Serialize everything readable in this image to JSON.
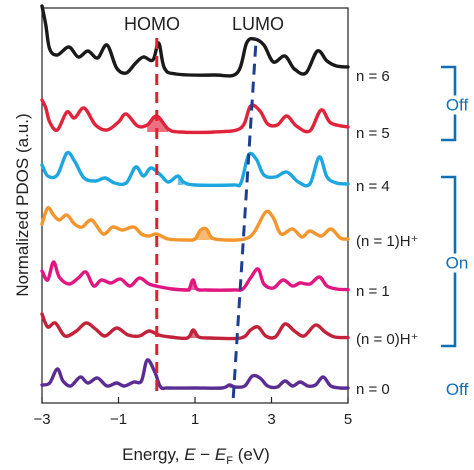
{
  "chart_data": {
    "type": "line",
    "ylabel": "Normalized PDOS (a.u.)",
    "xlabel_parts": [
      "Energy, ",
      "E",
      " − ",
      "E",
      "F",
      " (eV)"
    ],
    "xlim": [
      -3,
      5
    ],
    "xticks": [
      -3,
      -1,
      1,
      3,
      5
    ],
    "annotations": {
      "homo": "HOMO",
      "lumo": "LUMO"
    },
    "homo_x": 0.0,
    "lumo_line": [
      [
        2.0,
        0
      ],
      [
        2.6,
        6
      ]
    ],
    "series": [
      {
        "name": "n = 6",
        "color": "#1a1a1a",
        "points": [
          [
            -3,
            3.45
          ],
          [
            -2.9,
            2.5
          ],
          [
            -2.8,
            1.3
          ],
          [
            -2.6,
            1.0
          ],
          [
            -2.3,
            1.4
          ],
          [
            -2.05,
            0.9
          ],
          [
            -1.8,
            1.2
          ],
          [
            -1.55,
            0.85
          ],
          [
            -1.3,
            1.5
          ],
          [
            -1.05,
            0.35
          ],
          [
            -0.8,
            0.1
          ],
          [
            -0.55,
            0.6
          ],
          [
            -0.35,
            0.9
          ],
          [
            -0.1,
            0.75
          ],
          [
            0.05,
            1.6
          ],
          [
            0.2,
            0.35
          ],
          [
            0.5,
            0.05
          ],
          [
            1.5,
            0.0
          ],
          [
            2.1,
            0.1
          ],
          [
            2.35,
            1.6
          ],
          [
            2.55,
            1.8
          ],
          [
            2.8,
            1.5
          ],
          [
            3.05,
            0.65
          ],
          [
            3.35,
            0.95
          ],
          [
            3.6,
            0.3
          ],
          [
            3.9,
            0.1
          ],
          [
            4.2,
            1.2
          ],
          [
            4.45,
            0.7
          ],
          [
            4.7,
            0.45
          ],
          [
            5,
            0.4
          ]
        ]
      },
      {
        "name": "n = 5",
        "color": "#e0243c",
        "points": [
          [
            -3,
            1.6
          ],
          [
            -2.9,
            1.2
          ],
          [
            -2.8,
            0.5
          ],
          [
            -2.6,
            0.1
          ],
          [
            -2.35,
            1.0
          ],
          [
            -2.15,
            0.7
          ],
          [
            -1.9,
            1.2
          ],
          [
            -1.6,
            0.35
          ],
          [
            -1.3,
            0.1
          ],
          [
            -1.0,
            0.5
          ],
          [
            -0.8,
            0.9
          ],
          [
            -0.5,
            0.3
          ],
          [
            -0.25,
            0.35
          ],
          [
            0.0,
            0.8
          ],
          [
            0.3,
            0.15
          ],
          [
            0.6,
            0.0
          ],
          [
            1.5,
            0.0
          ],
          [
            2.2,
            0.2
          ],
          [
            2.45,
            1.3
          ],
          [
            2.7,
            1.05
          ],
          [
            2.9,
            0.4
          ],
          [
            3.15,
            0.35
          ],
          [
            3.4,
            0.8
          ],
          [
            3.65,
            0.3
          ],
          [
            4.0,
            0.05
          ],
          [
            4.3,
            1.1
          ],
          [
            4.55,
            0.45
          ],
          [
            5,
            0.25
          ]
        ],
        "filled": [
          -0.4,
          0.3
        ]
      },
      {
        "name": "n = 4",
        "color": "#1ea7df",
        "points": [
          [
            -3,
            1.0
          ],
          [
            -2.85,
            0.45
          ],
          [
            -2.6,
            0.5
          ],
          [
            -2.35,
            1.6
          ],
          [
            -2.15,
            1.2
          ],
          [
            -1.9,
            0.35
          ],
          [
            -1.6,
            0.2
          ],
          [
            -1.35,
            0.35
          ],
          [
            -1.1,
            0.1
          ],
          [
            -0.8,
            0.1
          ],
          [
            -0.55,
            0.9
          ],
          [
            -0.35,
            0.45
          ],
          [
            -0.15,
            0.85
          ],
          [
            0.1,
            0.5
          ],
          [
            0.3,
            0.15
          ],
          [
            0.55,
            0.45
          ],
          [
            0.7,
            0.15
          ],
          [
            1.0,
            0.0
          ],
          [
            2.0,
            0.0
          ],
          [
            2.2,
            0.1
          ],
          [
            2.4,
            1.5
          ],
          [
            2.6,
            1.3
          ],
          [
            2.8,
            0.5
          ],
          [
            3.1,
            0.4
          ],
          [
            3.4,
            0.65
          ],
          [
            3.7,
            0.15
          ],
          [
            4.0,
            0.05
          ],
          [
            4.25,
            1.4
          ],
          [
            4.45,
            0.4
          ],
          [
            4.7,
            0.1
          ],
          [
            5,
            0.05
          ]
        ],
        "filled": [
          0.35,
          0.85
        ]
      },
      {
        "name": "(n = 1)H⁺",
        "color": "#f2962d",
        "points": [
          [
            -3,
            0.8
          ],
          [
            -2.85,
            1.6
          ],
          [
            -2.7,
            1.25
          ],
          [
            -2.55,
            1.0
          ],
          [
            -2.35,
            1.25
          ],
          [
            -2.15,
            0.8
          ],
          [
            -1.95,
            0.65
          ],
          [
            -1.7,
            1.0
          ],
          [
            -1.4,
            0.3
          ],
          [
            -1.15,
            0.65
          ],
          [
            -0.9,
            0.5
          ],
          [
            -0.6,
            0.65
          ],
          [
            -0.4,
            0.3
          ],
          [
            -0.2,
            0.2
          ],
          [
            0.0,
            0.3
          ],
          [
            0.3,
            0.05
          ],
          [
            0.8,
            0.0
          ],
          [
            1.0,
            0.05
          ],
          [
            1.15,
            0.5
          ],
          [
            1.3,
            0.55
          ],
          [
            1.45,
            0.1
          ],
          [
            1.8,
            0.0
          ],
          [
            2.3,
            0.05
          ],
          [
            2.55,
            0.4
          ],
          [
            2.85,
            1.4
          ],
          [
            3.05,
            1.1
          ],
          [
            3.25,
            0.3
          ],
          [
            3.55,
            0.55
          ],
          [
            3.8,
            0.15
          ],
          [
            4.0,
            0.45
          ],
          [
            4.3,
            0.2
          ],
          [
            4.55,
            0.55
          ],
          [
            4.8,
            0.1
          ],
          [
            5,
            0.05
          ]
        ],
        "filled": [
          0.9,
          1.5
        ]
      },
      {
        "name": "n = 1",
        "color": "#e01781",
        "points": [
          [
            -3,
            0.95
          ],
          [
            -2.85,
            0.5
          ],
          [
            -2.7,
            1.4
          ],
          [
            -2.55,
            0.65
          ],
          [
            -2.3,
            0.3
          ],
          [
            -2.05,
            0.6
          ],
          [
            -1.85,
            0.9
          ],
          [
            -1.65,
            0.2
          ],
          [
            -1.45,
            0.5
          ],
          [
            -1.2,
            0.35
          ],
          [
            -0.95,
            0.55
          ],
          [
            -0.7,
            0.2
          ],
          [
            -0.45,
            0.6
          ],
          [
            -0.2,
            0.3
          ],
          [
            0.1,
            0.15
          ],
          [
            0.4,
            0.05
          ],
          [
            0.8,
            0.0
          ],
          [
            0.85,
            0.05
          ],
          [
            0.95,
            0.5
          ],
          [
            1.05,
            0.05
          ],
          [
            1.3,
            0.0
          ],
          [
            2.0,
            0.0
          ],
          [
            2.25,
            0.05
          ],
          [
            2.45,
            0.6
          ],
          [
            2.65,
            1.05
          ],
          [
            2.8,
            0.3
          ],
          [
            3.05,
            0.1
          ],
          [
            3.3,
            0.5
          ],
          [
            3.55,
            0.2
          ],
          [
            3.75,
            0.35
          ],
          [
            4.0,
            0.3
          ],
          [
            4.25,
            0.65
          ],
          [
            4.45,
            0.2
          ],
          [
            4.7,
            0.05
          ],
          [
            5,
            0.02
          ]
        ],
        "filled": [
          0.75,
          1.2
        ]
      },
      {
        "name": "(n = 0)H⁺",
        "color": "#c2223a",
        "points": [
          [
            -3,
            1.2
          ],
          [
            -2.85,
            0.55
          ],
          [
            -2.65,
            0.75
          ],
          [
            -2.4,
            0.1
          ],
          [
            -2.1,
            0.35
          ],
          [
            -1.85,
            0.75
          ],
          [
            -1.6,
            0.45
          ],
          [
            -1.35,
            0.1
          ],
          [
            -1.05,
            0.5
          ],
          [
            -0.75,
            0.15
          ],
          [
            -0.45,
            0.1
          ],
          [
            -0.2,
            0.35
          ],
          [
            0.05,
            0.15
          ],
          [
            0.35,
            0.05
          ],
          [
            0.8,
            0.0
          ],
          [
            0.95,
            0.4
          ],
          [
            1.1,
            0.05
          ],
          [
            1.4,
            0.0
          ],
          [
            2.2,
            0.0
          ],
          [
            2.45,
            0.4
          ],
          [
            2.65,
            0.55
          ],
          [
            2.85,
            0.1
          ],
          [
            3.1,
            0.05
          ],
          [
            3.35,
            0.7
          ],
          [
            3.6,
            0.35
          ],
          [
            3.85,
            0.1
          ],
          [
            4.15,
            0.65
          ],
          [
            4.4,
            0.3
          ],
          [
            4.65,
            0.05
          ],
          [
            5,
            0.02
          ]
        ],
        "filled": [
          0.75,
          1.2
        ]
      },
      {
        "name": "n = 0",
        "color": "#5b2d93",
        "points": [
          [
            -3,
            0.15
          ],
          [
            -2.8,
            0.25
          ],
          [
            -2.6,
            0.95
          ],
          [
            -2.45,
            0.35
          ],
          [
            -2.25,
            0.1
          ],
          [
            -2.0,
            0.55
          ],
          [
            -1.8,
            0.25
          ],
          [
            -1.55,
            0.5
          ],
          [
            -1.3,
            0.1
          ],
          [
            -1.05,
            0.25
          ],
          [
            -0.85,
            0.1
          ],
          [
            -0.6,
            0.3
          ],
          [
            -0.4,
            0.35
          ],
          [
            -0.25,
            1.4
          ],
          [
            -0.05,
            0.8
          ],
          [
            0.1,
            0.05
          ],
          [
            0.3,
            0.0
          ],
          [
            1.0,
            0.0
          ],
          [
            1.7,
            0.0
          ],
          [
            1.9,
            0.15
          ],
          [
            2.05,
            0.05
          ],
          [
            2.3,
            0.1
          ],
          [
            2.5,
            0.6
          ],
          [
            2.7,
            0.5
          ],
          [
            2.9,
            0.1
          ],
          [
            3.15,
            0.05
          ],
          [
            3.35,
            0.35
          ],
          [
            3.55,
            0.1
          ],
          [
            3.75,
            0.3
          ],
          [
            3.95,
            0.1
          ],
          [
            4.15,
            0.15
          ],
          [
            4.35,
            0.55
          ],
          [
            4.55,
            0.1
          ],
          [
            4.8,
            0.0
          ],
          [
            5,
            0.0
          ]
        ],
        "filled": [
          1.75,
          2.1
        ]
      }
    ],
    "groups": [
      {
        "label": "Off",
        "from": "n = 6",
        "to": "n = 5",
        "color": "#1170b5"
      },
      {
        "label": "On",
        "from": "n = 4",
        "to": "(n = 0)H⁺",
        "color": "#1170b5"
      },
      {
        "label": "Off",
        "from": "n = 0",
        "to": "n = 0",
        "color": "#1170b5"
      }
    ],
    "guide_colors": {
      "homo": "#e3202e",
      "lumo": "#1f3e8f"
    }
  }
}
